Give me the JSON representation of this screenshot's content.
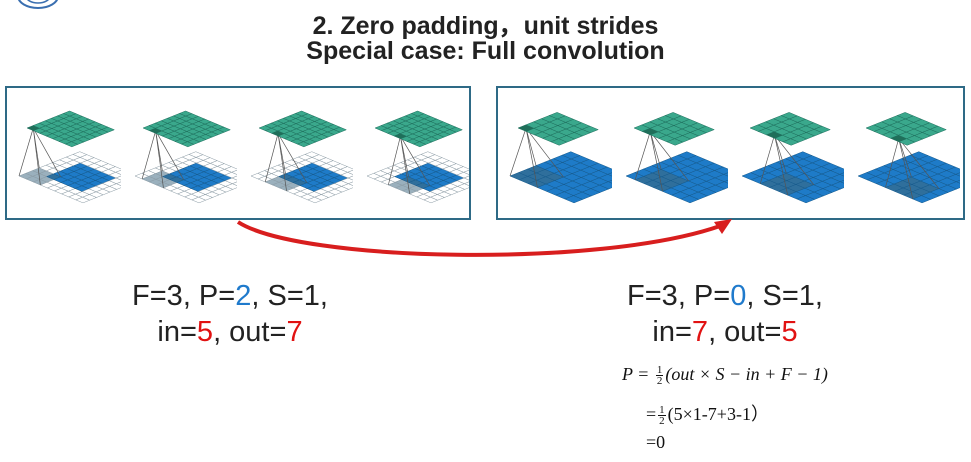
{
  "title": {
    "line1": "2. Zero padding，unit strides",
    "line2": "Special case: Full convolution"
  },
  "left_panel": {
    "F": "3",
    "P": "2",
    "S": "1",
    "in": "5",
    "out": "7",
    "input_size": 5,
    "padding": 2,
    "output_size": 7,
    "kernel_positions": [
      0,
      1,
      2,
      3
    ]
  },
  "right_panel": {
    "F": "3",
    "P": "0",
    "S": "1",
    "in": "7",
    "out": "5",
    "input_size": 7,
    "padding": 0,
    "output_size": 5,
    "kernel_positions": [
      0,
      1,
      2,
      3
    ]
  },
  "formula": {
    "line1_lhs": "P =",
    "line1_rhs": "(out × S − in + F − 1)",
    "line2_rhs": "(5×1-7+3-1）",
    "line3": "=0",
    "half_num": "1",
    "half_den": "2",
    "eq": "="
  },
  "colors": {
    "teal": "#3aa88c",
    "blue": "#1e7bc8",
    "highlight": "#7ab3df",
    "panel_border": "#2e6a86",
    "arrow": "#d81e1e",
    "param_blue": "#1f7acc",
    "param_red": "#e11212"
  }
}
